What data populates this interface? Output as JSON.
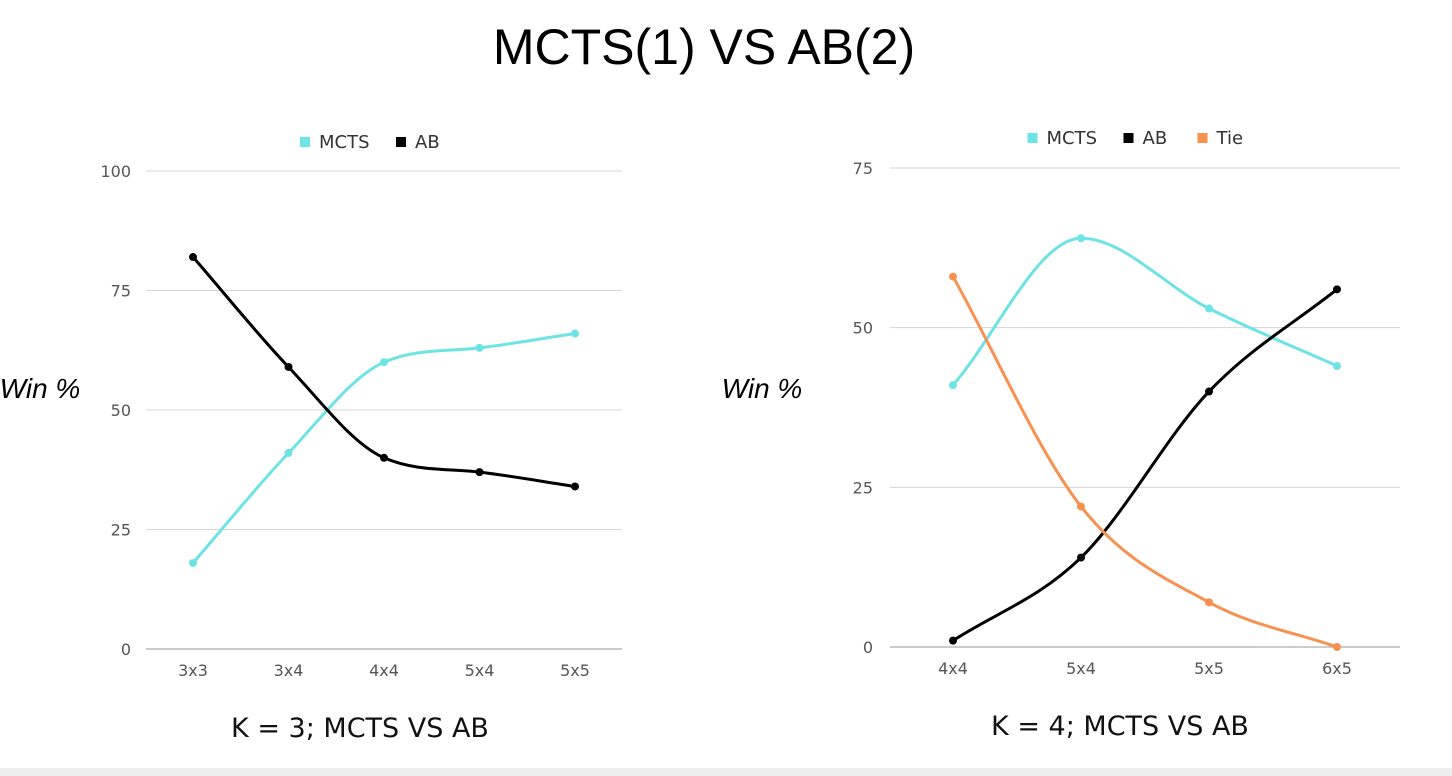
{
  "title": "MCTS(1) VS AB(2)",
  "colors": {
    "MCTS": "#6ee3e6",
    "AB": "#000000",
    "Tie": "#f7914f",
    "grid": "#d5d5d5"
  },
  "chart_data": [
    {
      "type": "line",
      "title": "K = 3; MCTS VS AB",
      "ylabel": "Win %",
      "xlabel": "",
      "categories": [
        "3x3",
        "3x4",
        "4x4",
        "5x4",
        "5x5"
      ],
      "ylim": [
        0,
        100
      ],
      "yticks": [
        0,
        25,
        50,
        75,
        100
      ],
      "grid": true,
      "legend": "top",
      "series": [
        {
          "name": "MCTS",
          "color": "#6ee3e6",
          "values": [
            18,
            41,
            60,
            63,
            66
          ]
        },
        {
          "name": "AB",
          "color": "#000000",
          "values": [
            82,
            59,
            40,
            37,
            34
          ]
        }
      ]
    },
    {
      "type": "line",
      "title": "K = 4; MCTS VS AB",
      "ylabel": "Win %",
      "xlabel": "",
      "categories": [
        "4x4",
        "5x4",
        "5x5",
        "6x5"
      ],
      "ylim": [
        0,
        75
      ],
      "yticks": [
        0,
        25,
        50,
        75
      ],
      "grid": true,
      "legend": "top",
      "series": [
        {
          "name": "MCTS",
          "color": "#6ee3e6",
          "values": [
            41,
            64,
            53,
            44
          ]
        },
        {
          "name": "AB",
          "color": "#000000",
          "values": [
            1,
            14,
            40,
            56
          ]
        },
        {
          "name": "Tie",
          "color": "#f7914f",
          "values": [
            58,
            22,
            7,
            0
          ]
        }
      ]
    }
  ]
}
